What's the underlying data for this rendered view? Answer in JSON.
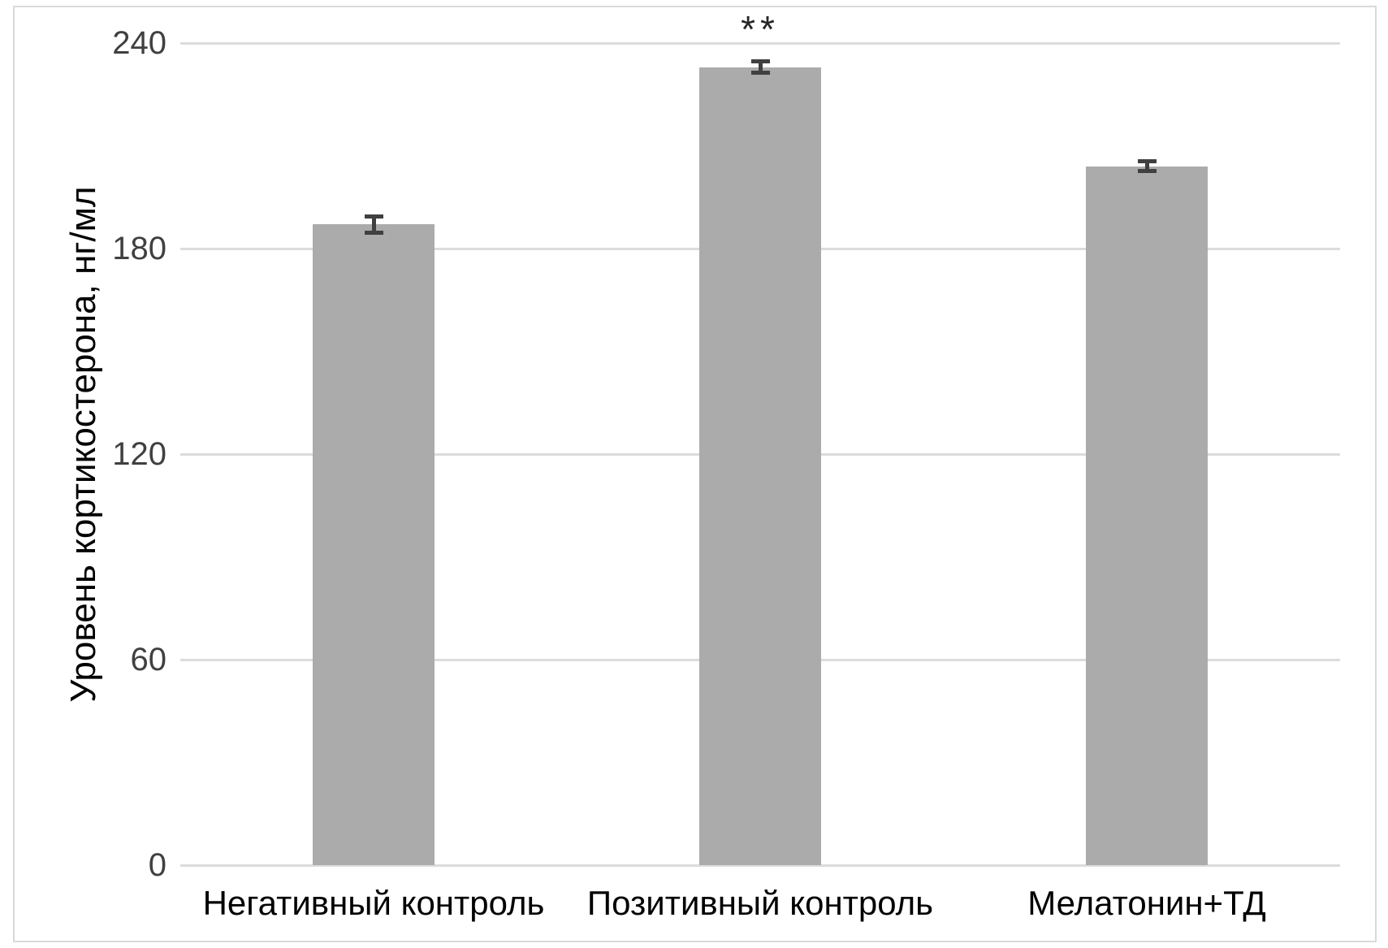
{
  "chart_data": {
    "type": "bar",
    "title": "",
    "categories": [
      "Негативный контроль",
      "Позитивный контроль",
      "Мелатонин+ТД"
    ],
    "values": [
      187,
      233,
      204
    ],
    "errors": [
      3,
      2.2,
      2
    ],
    "annotations": [
      "",
      "**",
      ""
    ],
    "ylabel": "Уровень кортикостерона, нг/мл",
    "xlabel": "",
    "yticks": [
      0,
      60,
      120,
      180,
      240
    ],
    "ylim": [
      0,
      240
    ],
    "grid": "horizontal-only",
    "legend": "none",
    "colors": {
      "bar_fill": "#ababab",
      "error_bar": "#404040",
      "gridline": "#dcdcdc",
      "frame_border": "#d9d9d9",
      "tick_label": "#404040",
      "category_label": "#000000",
      "axis_title": "#000000",
      "annotation": "#262626",
      "background": "#ffffff"
    }
  }
}
